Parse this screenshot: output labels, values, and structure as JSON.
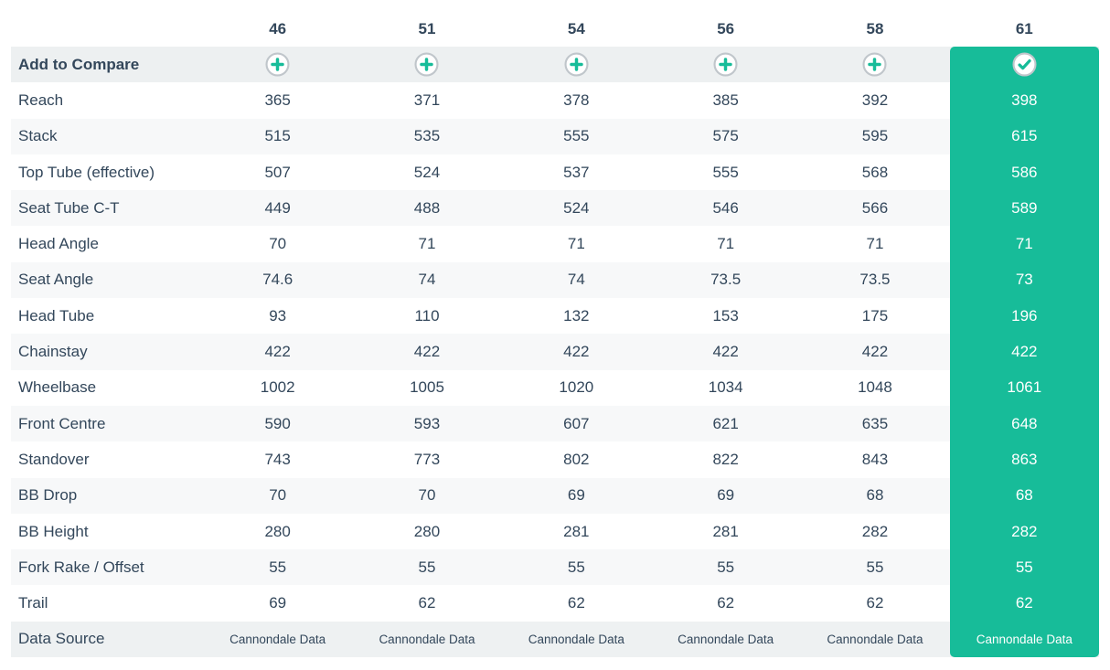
{
  "colors": {
    "accent": "#17bc99",
    "text_dark": "#33475b",
    "text_on_accent": "#ffffff",
    "band_row_bg": "#edf0f1",
    "band_row_bg2": "#eef1f2",
    "alt_row_bg": "#f7f8f9",
    "icon_ring": "#c0c6cb",
    "icon_fill": "#ffffff"
  },
  "header": {
    "sizes": [
      "46",
      "51",
      "54",
      "56",
      "58",
      "61"
    ],
    "selected_size": "61",
    "selected_index": 5
  },
  "compare_row": {
    "label": "Add to Compare",
    "add_icon": "plus-circle-icon",
    "selected_icon": "check-circle-icon"
  },
  "rows": [
    {
      "label": "Reach",
      "values": [
        "365",
        "371",
        "378",
        "385",
        "392",
        "398"
      ]
    },
    {
      "label": "Stack",
      "values": [
        "515",
        "535",
        "555",
        "575",
        "595",
        "615"
      ]
    },
    {
      "label": "Top Tube (effective)",
      "values": [
        "507",
        "524",
        "537",
        "555",
        "568",
        "586"
      ]
    },
    {
      "label": "Seat Tube C-T",
      "values": [
        "449",
        "488",
        "524",
        "546",
        "566",
        "589"
      ]
    },
    {
      "label": "Head Angle",
      "values": [
        "70",
        "71",
        "71",
        "71",
        "71",
        "71"
      ]
    },
    {
      "label": "Seat Angle",
      "values": [
        "74.6",
        "74",
        "74",
        "73.5",
        "73.5",
        "73"
      ]
    },
    {
      "label": "Head Tube",
      "values": [
        "93",
        "110",
        "132",
        "153",
        "175",
        "196"
      ]
    },
    {
      "label": "Chainstay",
      "values": [
        "422",
        "422",
        "422",
        "422",
        "422",
        "422"
      ]
    },
    {
      "label": "Wheelbase",
      "values": [
        "1002",
        "1005",
        "1020",
        "1034",
        "1048",
        "1061"
      ]
    },
    {
      "label": "Front Centre",
      "values": [
        "590",
        "593",
        "607",
        "621",
        "635",
        "648"
      ]
    },
    {
      "label": "Standover",
      "values": [
        "743",
        "773",
        "802",
        "822",
        "843",
        "863"
      ]
    },
    {
      "label": "BB Drop",
      "values": [
        "70",
        "70",
        "69",
        "69",
        "68",
        "68"
      ]
    },
    {
      "label": "BB Height",
      "values": [
        "280",
        "280",
        "281",
        "281",
        "282",
        "282"
      ]
    },
    {
      "label": "Fork Rake / Offset",
      "values": [
        "55",
        "55",
        "55",
        "55",
        "55",
        "55"
      ]
    },
    {
      "label": "Trail",
      "values": [
        "69",
        "62",
        "62",
        "62",
        "62",
        "62"
      ]
    }
  ],
  "data_source_row": {
    "label": "Data Source",
    "values": [
      "Cannondale Data",
      "Cannondale Data",
      "Cannondale Data",
      "Cannondale Data",
      "Cannondale Data",
      "Cannondale Data"
    ]
  }
}
